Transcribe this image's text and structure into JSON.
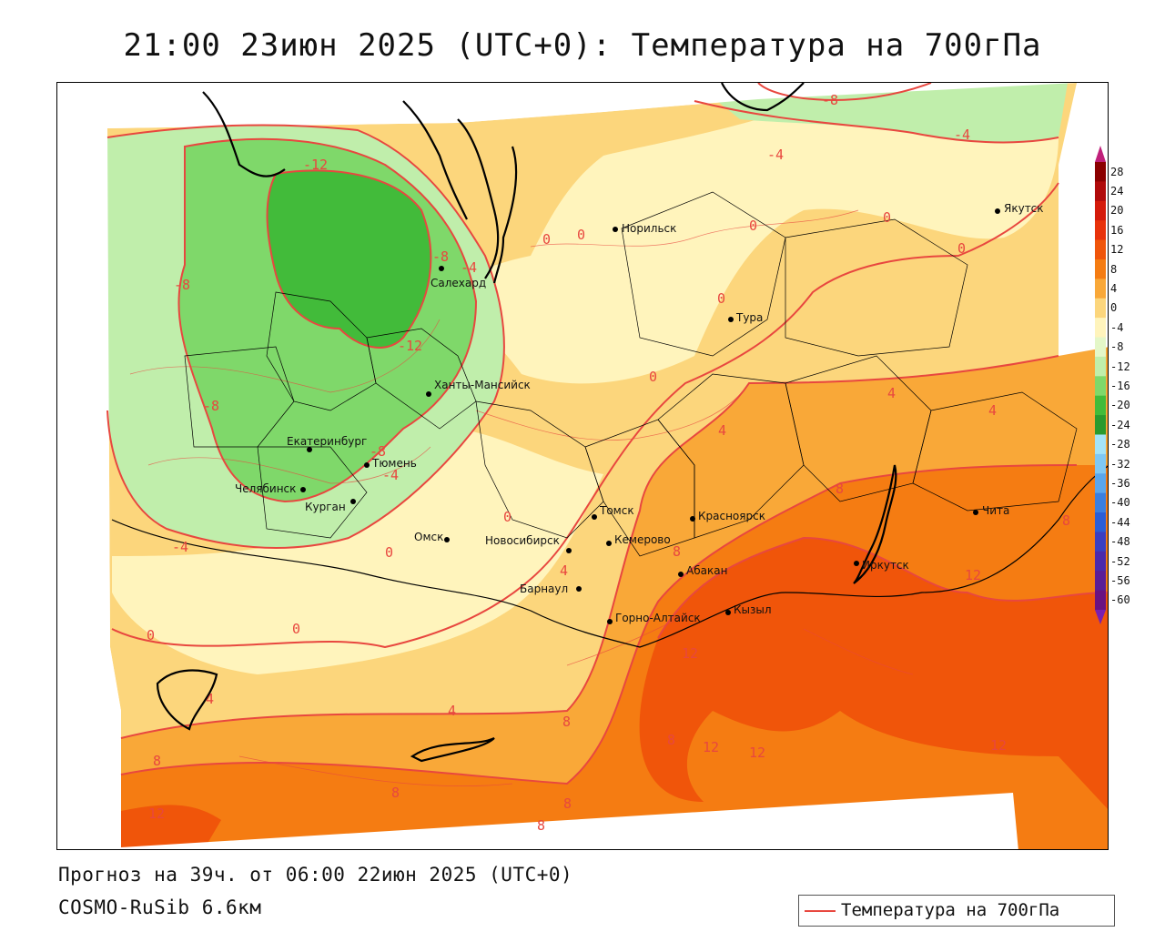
{
  "title": "21:00 23июн 2025 (UTC+0): Температура на 700гПа",
  "footer": {
    "forecast": "Прогноз на 39ч. от 06:00 22июн 2025 (UTC+0)",
    "model": "COSMO-RuSib 6.6км"
  },
  "legend": {
    "label": "Температура на 700гПа",
    "line_color": "#e8473f"
  },
  "colorbar": {
    "ticks": [
      "28",
      "24",
      "20",
      "16",
      "12",
      "8",
      "4",
      "0",
      "-4",
      "-8",
      "-12",
      "-16",
      "-20",
      "-24",
      "-28",
      "-32",
      "-36",
      "-40",
      "-44",
      "-48",
      "-52",
      "-56",
      "-60"
    ],
    "colors": [
      "#8b0000",
      "#b00a0a",
      "#d41a0a",
      "#e8320a",
      "#f0550a",
      "#f57c12",
      "#f9a838",
      "#fcd67c",
      "#fff4bc",
      "#e4f7c8",
      "#c0eeab",
      "#7fd86a",
      "#42bb3a",
      "#2a9a2e",
      "#a4e4f8",
      "#7fc8f4",
      "#5aa6ec",
      "#3a7fe0",
      "#2a5ed6",
      "#3a3fc0",
      "#4b2aaa",
      "#5a1e96",
      "#6a1280"
    ]
  },
  "cities": [
    {
      "name": "Норильск"
    },
    {
      "name": "Якутск"
    },
    {
      "name": "Салехард"
    },
    {
      "name": "Тура"
    },
    {
      "name": "Ханты-Мансийск"
    },
    {
      "name": "Екатеринбург"
    },
    {
      "name": "Тюмень"
    },
    {
      "name": "Челябинск"
    },
    {
      "name": "Курган"
    },
    {
      "name": "Омск"
    },
    {
      "name": "Новосибирск"
    },
    {
      "name": "Томск"
    },
    {
      "name": "Красноярск"
    },
    {
      "name": "Кемерово"
    },
    {
      "name": "Барнаул"
    },
    {
      "name": "Абакан"
    },
    {
      "name": "Горно-Алтайск"
    },
    {
      "name": "Кызыл"
    },
    {
      "name": "Иркутск"
    },
    {
      "name": "Чита"
    }
  ],
  "isotherm_labels": [
    "-8",
    "-4",
    "-12",
    "0",
    "0",
    "0",
    "-4",
    "0",
    "0",
    "0",
    "-8",
    "-4",
    "-8",
    "-12",
    "0",
    "4",
    "4",
    "4",
    "-8",
    "-4",
    "-8",
    "0",
    "0",
    "8",
    "8",
    "4",
    "8",
    "12",
    "12",
    "-4",
    "0",
    "0",
    "4",
    "4",
    "8",
    "8",
    "12",
    "12",
    "12",
    "8",
    "12",
    "8",
    "8",
    "8"
  ],
  "map_colors": {
    "t_minus12": "#42bb3a",
    "t_minus8": "#7fd86a",
    "t_minus4": "#c0eeab",
    "t_0": "#fff4bc",
    "t_4": "#fcd67c",
    "t_8": "#f9a838",
    "t_12": "#f57c12",
    "t_16": "#f0550a",
    "isotherm": "#e8473f",
    "border": "#000000"
  }
}
